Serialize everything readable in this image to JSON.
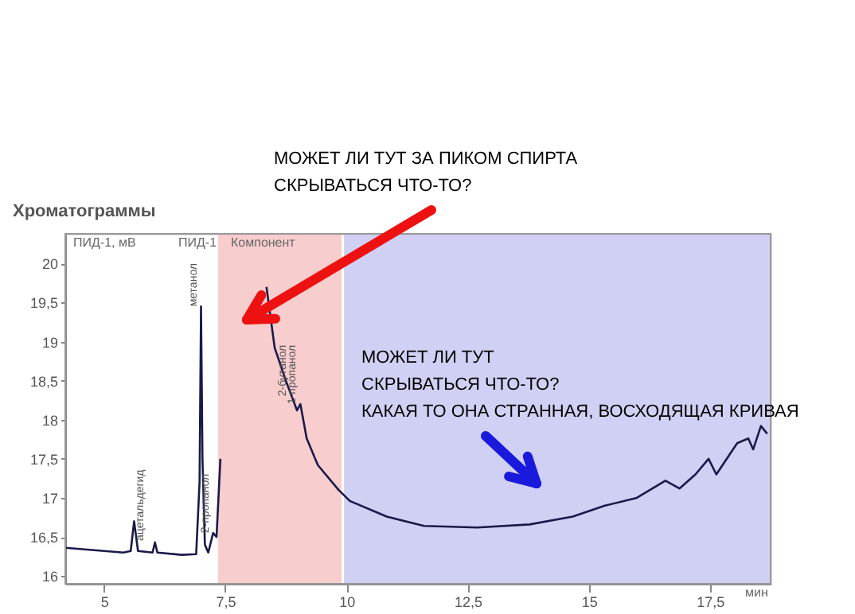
{
  "chart_data": {
    "type": "line",
    "title": "Хроматограммы",
    "ylabel": "ПИД-1, мВ",
    "xlabel": "мин",
    "x": [
      4.2,
      4.8,
      5.4,
      5.55,
      5.62,
      5.7,
      6.0,
      6.05,
      6.1,
      6.6,
      6.9,
      6.97,
      7.0,
      7.03,
      7.08,
      7.15,
      7.25,
      7.32,
      7.4,
      7.45,
      7.8,
      8.19,
      8.35,
      8.52,
      8.75,
      8.98,
      9.05,
      9.18,
      9.41,
      9.84,
      10.07,
      10.83,
      11.6,
      12.7,
      13.78,
      14.67,
      15.33,
      15.99,
      16.58,
      16.87,
      17.2,
      17.47,
      17.63,
      18.06,
      18.29,
      18.39,
      18.55,
      18.68
    ],
    "series": [
      {
        "color": "#1a1a4a",
        "values": [
          16.36,
          16.33,
          16.3,
          16.32,
          16.7,
          16.32,
          16.3,
          16.43,
          16.3,
          16.27,
          16.28,
          17.2,
          19.45,
          17.5,
          16.4,
          16.3,
          16.55,
          16.5,
          17.5,
          null,
          null,
          null,
          19.7,
          18.92,
          18.5,
          18.12,
          18.2,
          17.76,
          17.42,
          17.1,
          16.96,
          16.76,
          16.64,
          16.62,
          16.66,
          16.76,
          16.9,
          17.0,
          17.22,
          17.12,
          17.3,
          17.5,
          17.3,
          17.7,
          17.76,
          17.62,
          17.92,
          17.82
        ]
      }
    ],
    "xlim": [
      4.2,
      18.75
    ],
    "xticks": [
      5,
      {
        "value": 7.5,
        "label": "7,5"
      },
      10,
      {
        "value": 12.5,
        "label": "12,5"
      },
      15,
      {
        "value": 17.5,
        "label": "17,5"
      }
    ],
    "ylim": [
      15.9,
      20.38
    ],
    "yticks": [
      16,
      {
        "value": 16.5,
        "label": "16,5"
      },
      17,
      {
        "value": 17.5,
        "label": "17,5"
      },
      18,
      {
        "value": 18.5,
        "label": "18,5"
      },
      19,
      {
        "value": 19.5,
        "label": "19,5"
      },
      20
    ],
    "bands": [
      {
        "axis": "x",
        "from": 7.35,
        "to": 9.9,
        "color": "#f7c4c4"
      },
      {
        "axis": "x",
        "from": 9.95,
        "to": 18.75,
        "color": "#c8c8f2"
      }
    ],
    "annotations": [
      "МОЖЕТ ЛИ ТУТ ЗА ПИКОМ СПИРТА\nСКРЫВАТЬСЯ ЧТО-ТО?",
      "МОЖЕТ ЛИ ТУТ\nСКРЫВАТЬСЯ ЧТО-ТО?\nКАКАЯ ТО ОНА СТРАННАЯ, ВОСХОДЯЩАЯ КРИВАЯ",
      "ПИД-1",
      "Компонент",
      {
        "text": "ацетальдегид",
        "x": 5.9,
        "y": 16.45
      },
      {
        "text": "метанол",
        "x": 7.0,
        "y": 19.45
      },
      {
        "text": "2-пропанол",
        "x": 7.25,
        "y": 16.55
      },
      {
        "text": "2-бутанол",
        "x": 8.85,
        "y": 18.3
      },
      {
        "text": "1-пропанол",
        "x": 9.05,
        "y": 18.2
      }
    ],
    "grid": false,
    "marker": "none",
    "line_style": "solid"
  }
}
